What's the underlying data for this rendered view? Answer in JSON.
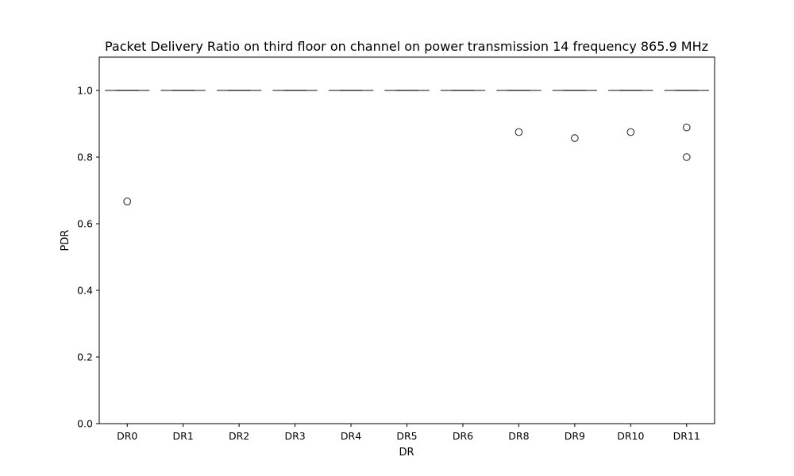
{
  "chart_data": {
    "type": "box",
    "title": "Packet Delivery Ratio on third floor on channel on power transmission 14 frequency 865.9 MHz",
    "xlabel": "DR",
    "ylabel": "PDR",
    "ylim": [
      0,
      1.1
    ],
    "yticks": [
      "0.0",
      "0.2",
      "0.4",
      "0.6",
      "0.8",
      "1.0"
    ],
    "grid": false,
    "categories": [
      "DR0",
      "DR1",
      "DR2",
      "DR3",
      "DR4",
      "DR5",
      "DR6",
      "DR8",
      "DR9",
      "DR10",
      "DR11"
    ],
    "boxes": [
      {
        "q1": 1.0,
        "median": 1.0,
        "q3": 1.0,
        "whisker_low": 1.0,
        "whisker_high": 1.0,
        "outliers": [
          0.667
        ]
      },
      {
        "q1": 1.0,
        "median": 1.0,
        "q3": 1.0,
        "whisker_low": 1.0,
        "whisker_high": 1.0,
        "outliers": []
      },
      {
        "q1": 1.0,
        "median": 1.0,
        "q3": 1.0,
        "whisker_low": 1.0,
        "whisker_high": 1.0,
        "outliers": []
      },
      {
        "q1": 1.0,
        "median": 1.0,
        "q3": 1.0,
        "whisker_low": 1.0,
        "whisker_high": 1.0,
        "outliers": []
      },
      {
        "q1": 1.0,
        "median": 1.0,
        "q3": 1.0,
        "whisker_low": 1.0,
        "whisker_high": 1.0,
        "outliers": []
      },
      {
        "q1": 1.0,
        "median": 1.0,
        "q3": 1.0,
        "whisker_low": 1.0,
        "whisker_high": 1.0,
        "outliers": []
      },
      {
        "q1": 1.0,
        "median": 1.0,
        "q3": 1.0,
        "whisker_low": 1.0,
        "whisker_high": 1.0,
        "outliers": []
      },
      {
        "q1": 1.0,
        "median": 1.0,
        "q3": 1.0,
        "whisker_low": 1.0,
        "whisker_high": 1.0,
        "outliers": [
          0.875
        ]
      },
      {
        "q1": 1.0,
        "median": 1.0,
        "q3": 1.0,
        "whisker_low": 1.0,
        "whisker_high": 1.0,
        "outliers": [
          0.857
        ]
      },
      {
        "q1": 1.0,
        "median": 1.0,
        "q3": 1.0,
        "whisker_low": 1.0,
        "whisker_high": 1.0,
        "outliers": [
          0.875
        ]
      },
      {
        "q1": 1.0,
        "median": 1.0,
        "q3": 1.0,
        "whisker_low": 1.0,
        "whisker_high": 1.0,
        "outliers": [
          0.889,
          0.8
        ]
      }
    ],
    "colors": {
      "box_edge": "#3f3f3f",
      "axes": "#000000",
      "background": "#ffffff"
    }
  }
}
